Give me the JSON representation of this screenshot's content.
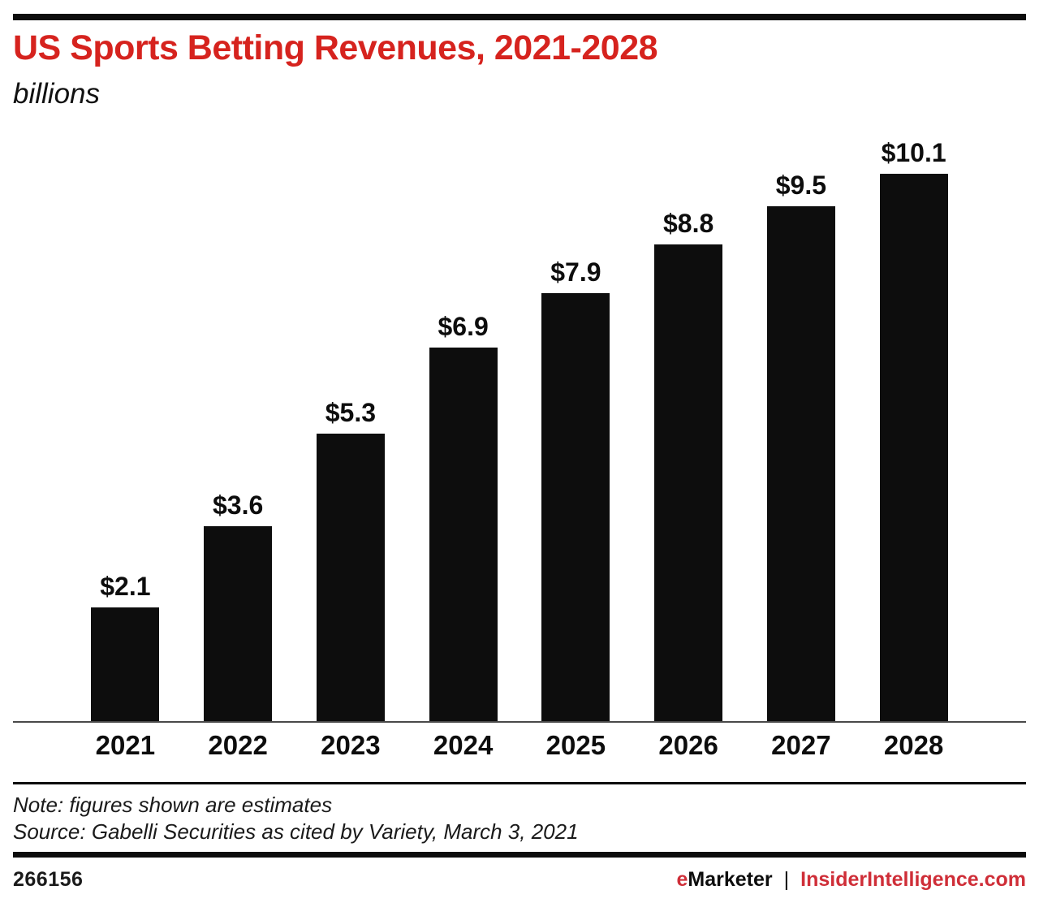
{
  "chart_data": {
    "type": "bar",
    "title": "US Sports Betting Revenues, 2021-2028",
    "subtitle_unit": "billions",
    "categories": [
      "2021",
      "2022",
      "2023",
      "2024",
      "2025",
      "2026",
      "2027",
      "2028"
    ],
    "values": [
      2.1,
      3.6,
      5.3,
      6.9,
      7.9,
      8.8,
      9.5,
      10.1
    ],
    "value_labels": [
      "$2.1",
      "$3.6",
      "$5.3",
      "$6.9",
      "$7.9",
      "$8.8",
      "$9.5",
      "$10.1"
    ],
    "xlabel": "",
    "ylabel": "",
    "ylim": [
      0,
      11
    ],
    "grid": false,
    "legend": "none",
    "bar_color": "#0d0d0d"
  },
  "footnotes": {
    "note": "Note: figures shown are estimates",
    "source": "Source: Gabelli Securities as cited by Variety, March 3, 2021"
  },
  "footer": {
    "chart_id": "266156",
    "brand_e": "e",
    "brand_rest": "Marketer",
    "separator": "|",
    "site": "InsiderIntelligence.com"
  },
  "colors": {
    "title_red": "#d6231e",
    "brand_red": "#cf2e38",
    "bar_black": "#0d0d0d",
    "axis_line": "#4a4a4a"
  }
}
